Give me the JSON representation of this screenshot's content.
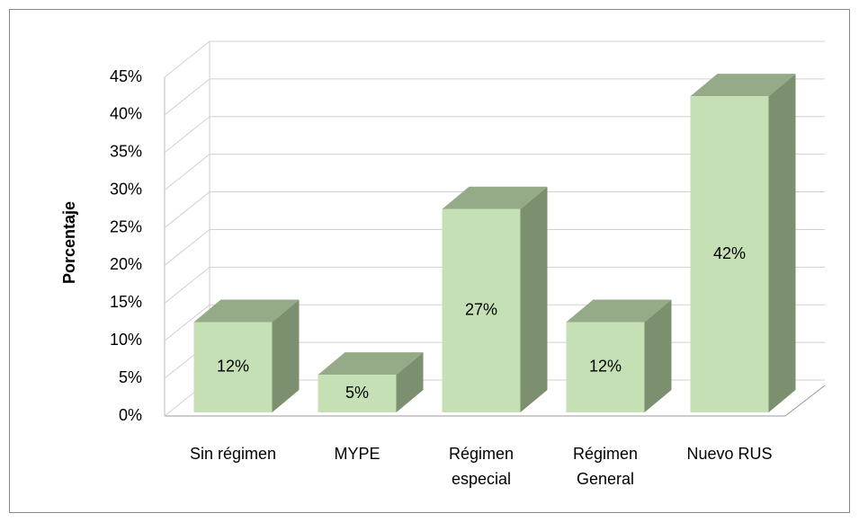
{
  "chart_data": {
    "type": "bar3d",
    "y_label": "Porcentaje",
    "categories": [
      "Sin régimen",
      "MYPE",
      "Régimen especial",
      "Régimen General",
      "Nuevo RUS"
    ],
    "values": [
      12,
      5,
      27,
      12,
      42
    ],
    "value_labels": [
      "12%",
      "5%",
      "27%",
      "12%",
      "42%"
    ],
    "color": "#c5e0b4",
    "ylim": [
      0,
      45
    ],
    "yticks": [
      {
        "value": 0,
        "label": "0%"
      },
      {
        "value": 5,
        "label": "5%"
      },
      {
        "value": 10,
        "label": "10%"
      },
      {
        "value": 15,
        "label": "15%"
      },
      {
        "value": 20,
        "label": "20%"
      },
      {
        "value": 25,
        "label": "25%"
      },
      {
        "value": 30,
        "label": "30%"
      },
      {
        "value": 35,
        "label": "35%"
      },
      {
        "value": 40,
        "label": "40%"
      },
      {
        "value": 45,
        "label": "45%"
      }
    ],
    "grid": true
  }
}
